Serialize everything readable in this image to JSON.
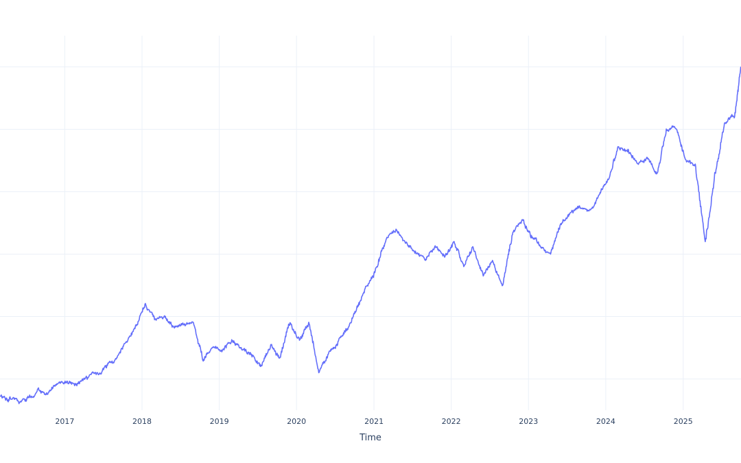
{
  "chart_data": {
    "type": "line",
    "title": "",
    "xlabel": "Time",
    "ylabel": "",
    "x_tick_labels": [
      "2017",
      "2018",
      "2019",
      "2020",
      "2021",
      "2022",
      "2023",
      "2024",
      "2025"
    ],
    "xlim": [
      "2016-03-01",
      "2025-10-01"
    ],
    "ylim": [
      0.5,
      6.5
    ],
    "y_gridlines": [
      1,
      2,
      3,
      4,
      5,
      6
    ],
    "grid": true,
    "series_color": "#636efa",
    "series": [
      {
        "x": [
          "2016-03-01",
          "2016-04-15",
          "2016-06-01",
          "2016-07-15",
          "2016-09-01",
          "2016-10-15",
          "2016-12-01",
          "2017-01-15",
          "2017-03-01",
          "2017-04-15",
          "2017-06-01",
          "2017-07-15",
          "2017-09-01",
          "2017-10-15",
          "2017-12-01",
          "2018-01-15",
          "2018-03-01",
          "2018-04-15",
          "2018-06-01",
          "2018-07-15",
          "2018-09-01",
          "2018-10-15",
          "2018-12-01",
          "2019-01-15",
          "2019-03-01",
          "2019-04-15",
          "2019-06-01",
          "2019-07-15",
          "2019-09-01",
          "2019-10-15",
          "2019-12-01",
          "2020-01-15",
          "2020-03-01",
          "2020-04-15",
          "2020-06-01",
          "2020-07-15",
          "2020-09-01",
          "2020-10-15",
          "2020-12-01",
          "2021-01-15",
          "2021-03-01",
          "2021-04-15",
          "2021-06-01",
          "2021-07-15",
          "2021-09-01",
          "2021-10-15",
          "2021-12-01",
          "2022-01-15",
          "2022-03-01",
          "2022-04-15",
          "2022-06-01",
          "2022-07-15",
          "2022-09-01",
          "2022-10-15",
          "2022-12-01",
          "2023-01-15",
          "2023-03-01",
          "2023-04-15",
          "2023-06-01",
          "2023-07-15",
          "2023-09-01",
          "2023-10-15",
          "2023-12-01",
          "2024-01-15",
          "2024-03-01",
          "2024-04-15",
          "2024-06-01",
          "2024-07-15",
          "2024-09-01",
          "2024-10-15",
          "2024-12-01",
          "2025-01-15",
          "2025-03-01",
          "2025-04-15",
          "2025-06-01",
          "2025-07-15",
          "2025-09-01",
          "2025-10-01"
        ],
        "y": [
          0.72,
          0.7,
          0.63,
          0.7,
          0.82,
          0.78,
          0.93,
          0.94,
          0.93,
          1.02,
          1.1,
          1.18,
          1.32,
          1.58,
          1.85,
          2.2,
          1.95,
          2.0,
          1.83,
          1.88,
          1.9,
          1.3,
          1.5,
          1.45,
          1.63,
          1.5,
          1.4,
          1.2,
          1.55,
          1.35,
          1.9,
          1.62,
          1.88,
          1.1,
          1.42,
          1.6,
          1.82,
          2.15,
          2.5,
          2.8,
          3.25,
          3.4,
          3.18,
          3.05,
          2.9,
          3.12,
          2.95,
          3.2,
          2.8,
          3.1,
          2.65,
          2.9,
          2.5,
          3.3,
          3.55,
          3.3,
          3.1,
          3.0,
          3.48,
          3.65,
          3.75,
          3.7,
          3.95,
          4.2,
          4.72,
          4.68,
          4.45,
          4.55,
          4.3,
          4.98,
          5.0,
          4.5,
          4.4,
          3.2,
          4.3,
          5.1,
          5.2,
          6.0
        ]
      }
    ]
  }
}
